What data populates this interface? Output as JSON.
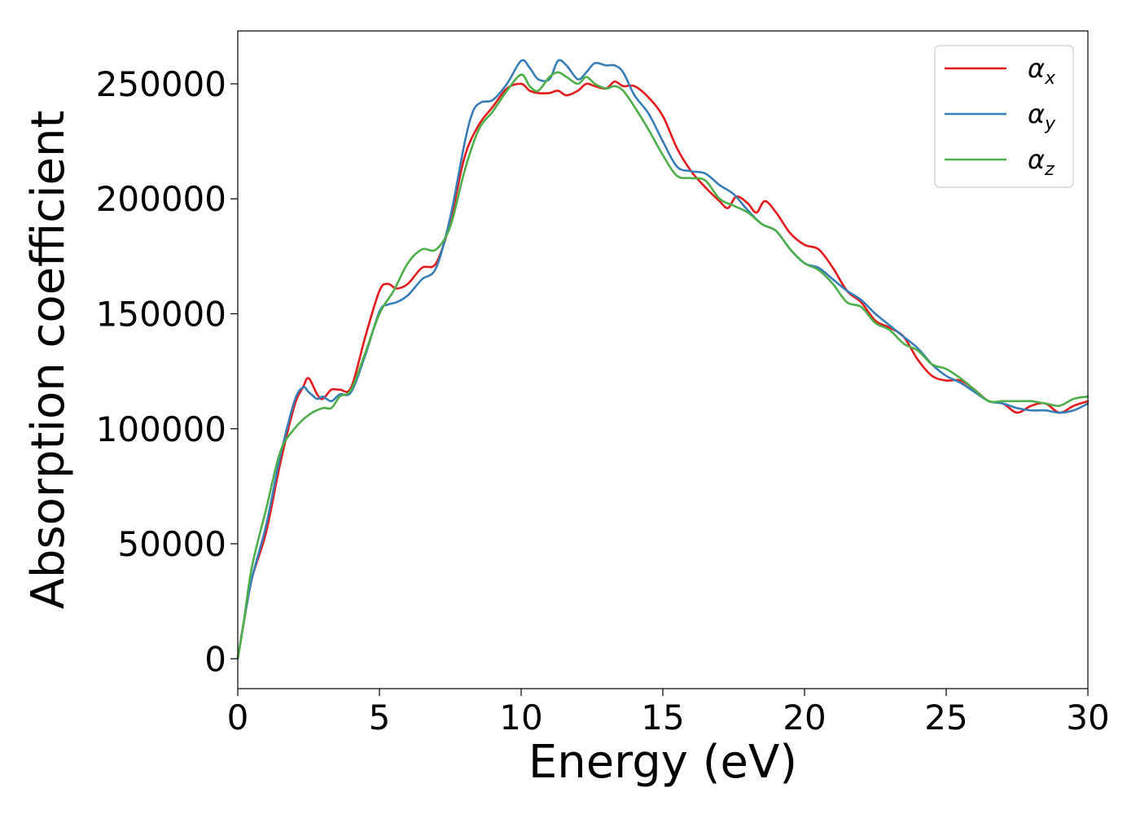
{
  "chart_data": {
    "type": "line",
    "title": "",
    "xlabel": "Energy (eV)",
    "ylabel": "Absorption coefficient",
    "xlim": [
      0,
      30
    ],
    "ylim": [
      -13000,
      273000
    ],
    "x_ticks": [
      0,
      5,
      10,
      15,
      20,
      25,
      30
    ],
    "y_ticks": [
      0,
      50000,
      100000,
      150000,
      200000,
      250000
    ],
    "grid": false,
    "legend_position": "top-right",
    "series": [
      {
        "name": "α",
        "subscript": "x",
        "color": "#e41a1c",
        "x": [
          0,
          0.2,
          0.5,
          1.0,
          1.5,
          2.0,
          2.3,
          2.5,
          2.8,
          3.0,
          3.3,
          3.6,
          4.0,
          4.5,
          5.0,
          5.3,
          5.6,
          6.0,
          6.5,
          7.0,
          7.5,
          8.0,
          8.5,
          9.0,
          9.5,
          10.0,
          10.3,
          10.6,
          11.0,
          11.3,
          11.6,
          12.0,
          12.3,
          12.6,
          13.0,
          13.3,
          13.6,
          14.0,
          14.5,
          15.0,
          15.5,
          16.0,
          16.5,
          17.0,
          17.3,
          17.6,
          18.0,
          18.3,
          18.6,
          19.0,
          19.5,
          20.0,
          20.5,
          21.0,
          21.5,
          22.0,
          22.5,
          23.0,
          23.5,
          24.0,
          24.5,
          25.0,
          25.5,
          26.0,
          26.5,
          27.0,
          27.5,
          28.0,
          28.5,
          29.0,
          29.5,
          30.0
        ],
        "y": [
          0,
          15000,
          35000,
          55000,
          85000,
          110000,
          118000,
          122000,
          115000,
          113000,
          117000,
          117000,
          118000,
          140000,
          160000,
          163000,
          161000,
          163000,
          170000,
          172000,
          190000,
          218000,
          232000,
          240000,
          248000,
          250000,
          247000,
          246000,
          246000,
          247000,
          245000,
          247000,
          250000,
          249000,
          248000,
          251000,
          249000,
          249000,
          244000,
          236000,
          222000,
          212000,
          205000,
          199000,
          196000,
          201000,
          198000,
          194000,
          199000,
          194000,
          185000,
          180000,
          178000,
          170000,
          160000,
          155000,
          147000,
          144000,
          140000,
          130000,
          123000,
          121000,
          121000,
          117000,
          112000,
          111000,
          107000,
          110000,
          111000,
          107000,
          110000,
          112000
        ]
      },
      {
        "name": "α",
        "subscript": "y",
        "color": "#377eb8",
        "x": [
          0,
          0.2,
          0.5,
          1.0,
          1.5,
          2.0,
          2.3,
          2.5,
          2.8,
          3.0,
          3.3,
          3.6,
          4.0,
          4.5,
          5.0,
          5.3,
          5.6,
          6.0,
          6.5,
          7.0,
          7.5,
          8.0,
          8.3,
          8.6,
          9.0,
          9.5,
          10.0,
          10.3,
          10.6,
          11.0,
          11.3,
          11.6,
          12.0,
          12.3,
          12.6,
          13.0,
          13.3,
          13.6,
          14.0,
          14.5,
          15.0,
          15.5,
          16.0,
          16.5,
          17.0,
          17.5,
          18.0,
          18.5,
          19.0,
          19.5,
          20.0,
          20.5,
          21.0,
          21.5,
          22.0,
          22.5,
          23.0,
          23.5,
          24.0,
          24.5,
          25.0,
          25.5,
          26.0,
          26.5,
          27.0,
          27.5,
          28.0,
          28.5,
          29.0,
          29.5,
          30.0
        ],
        "y": [
          0,
          15000,
          35000,
          58000,
          88000,
          112000,
          118000,
          116000,
          113000,
          114000,
          112000,
          115000,
          116000,
          132000,
          151000,
          154000,
          155000,
          158000,
          165000,
          170000,
          192000,
          224000,
          238000,
          242000,
          243000,
          250000,
          260000,
          257000,
          252000,
          252000,
          260000,
          258000,
          252000,
          255000,
          259000,
          258000,
          258000,
          255000,
          245000,
          237000,
          225000,
          214000,
          212000,
          211000,
          206000,
          202000,
          195000,
          189000,
          186000,
          178000,
          172000,
          170000,
          165000,
          160000,
          156000,
          150000,
          145000,
          140000,
          135000,
          128000,
          123000,
          120000,
          116000,
          112000,
          111000,
          109000,
          108000,
          108000,
          107000,
          108000,
          111000
        ]
      },
      {
        "name": "α",
        "subscript": "z",
        "color": "#4daf4a",
        "x": [
          0,
          0.2,
          0.5,
          1.0,
          1.5,
          2.0,
          2.5,
          3.0,
          3.3,
          3.6,
          4.0,
          4.5,
          5.0,
          5.5,
          6.0,
          6.5,
          7.0,
          7.5,
          8.0,
          8.5,
          9.0,
          9.5,
          10.0,
          10.3,
          10.6,
          11.0,
          11.3,
          11.6,
          12.0,
          12.3,
          12.6,
          13.0,
          13.3,
          13.6,
          14.0,
          14.5,
          15.0,
          15.5,
          16.0,
          16.5,
          17.0,
          17.5,
          18.0,
          18.5,
          19.0,
          19.5,
          20.0,
          20.5,
          21.0,
          21.5,
          22.0,
          22.5,
          23.0,
          23.5,
          24.0,
          24.5,
          25.0,
          25.5,
          26.0,
          26.5,
          27.0,
          27.5,
          28.0,
          28.5,
          29.0,
          29.5,
          30.0
        ],
        "y": [
          0,
          15000,
          40000,
          65000,
          90000,
          100000,
          106000,
          109000,
          109000,
          114000,
          117000,
          133000,
          150000,
          160000,
          172000,
          178000,
          178000,
          188000,
          212000,
          230000,
          238000,
          247000,
          254000,
          249000,
          247000,
          253000,
          255000,
          253000,
          250000,
          253000,
          250000,
          248000,
          249000,
          247000,
          240000,
          230000,
          219000,
          210000,
          209000,
          208000,
          200000,
          197000,
          194000,
          189000,
          186000,
          178000,
          172000,
          169000,
          163000,
          155000,
          153000,
          146000,
          143000,
          137000,
          134000,
          128000,
          126000,
          122000,
          117000,
          112000,
          112000,
          112000,
          112000,
          111000,
          110000,
          113000,
          114000
        ]
      }
    ]
  }
}
